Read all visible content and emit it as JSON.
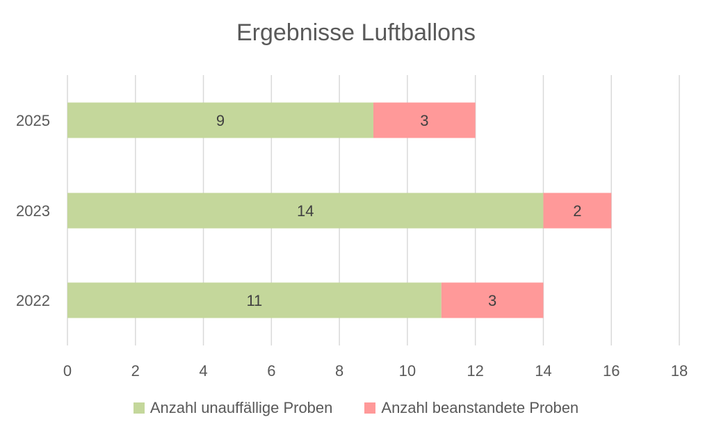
{
  "chart_data": {
    "type": "bar",
    "orientation": "horizontal",
    "stacked": true,
    "title": "Ergebnisse Luftballons",
    "categories": [
      "2025",
      "2023",
      "2022"
    ],
    "series": [
      {
        "name": "Anzahl unauffällige Proben",
        "values": [
          9,
          14,
          11
        ],
        "color": "#c4d79b"
      },
      {
        "name": "Anzahl beanstandete Proben",
        "values": [
          3,
          2,
          3
        ],
        "color": "#ff9999"
      }
    ],
    "xlim": [
      0,
      18
    ],
    "xticks": [
      "0",
      "2",
      "4",
      "6",
      "8",
      "10",
      "12",
      "14",
      "16",
      "18"
    ],
    "grid": true,
    "legend_position": "bottom"
  }
}
